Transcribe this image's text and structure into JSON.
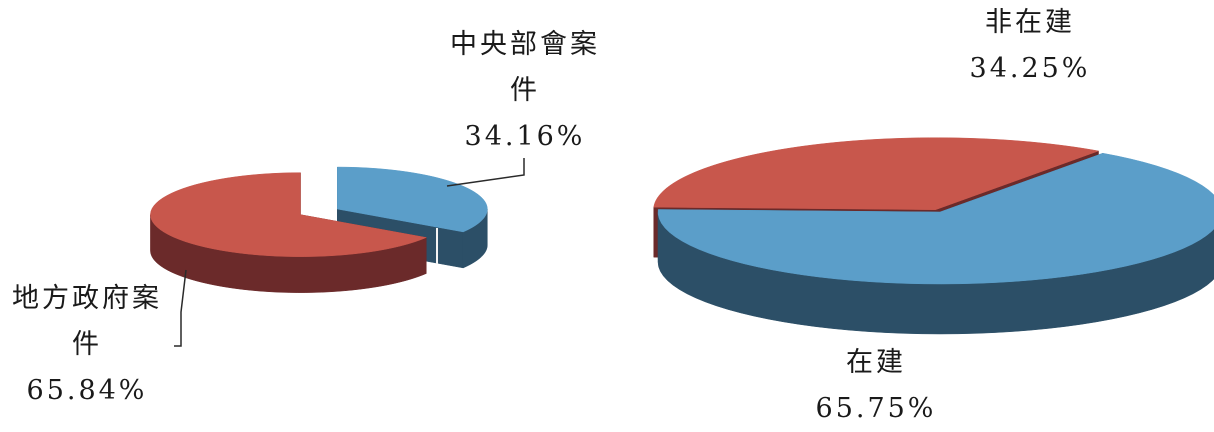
{
  "chart_data": [
    {
      "type": "pie",
      "categories": [
        "中央部會案件",
        "地方政府案件"
      ],
      "values": [
        34.16,
        65.84
      ],
      "labels": [
        {
          "lines": [
            "中央部會案",
            "件"
          ],
          "value": "34.16%"
        },
        {
          "lines": [
            "地方政府案",
            "件"
          ],
          "value": "65.84%"
        }
      ],
      "colors": {
        "top": [
          "#5b9ec9",
          "#c8574c"
        ],
        "side": [
          "#2c4f67",
          "#6b2a2a"
        ]
      }
    },
    {
      "type": "pie",
      "categories": [
        "非在建",
        "在建"
      ],
      "values": [
        34.25,
        65.75
      ],
      "labels": [
        {
          "lines": [
            "非在建"
          ],
          "value": "34.25%"
        },
        {
          "lines": [
            "在建"
          ],
          "value": "65.75%"
        }
      ],
      "colors": {
        "top": [
          "#c8574c",
          "#5b9ec9"
        ],
        "side": [
          "#6b2a2a",
          "#2c4f67"
        ]
      }
    }
  ]
}
